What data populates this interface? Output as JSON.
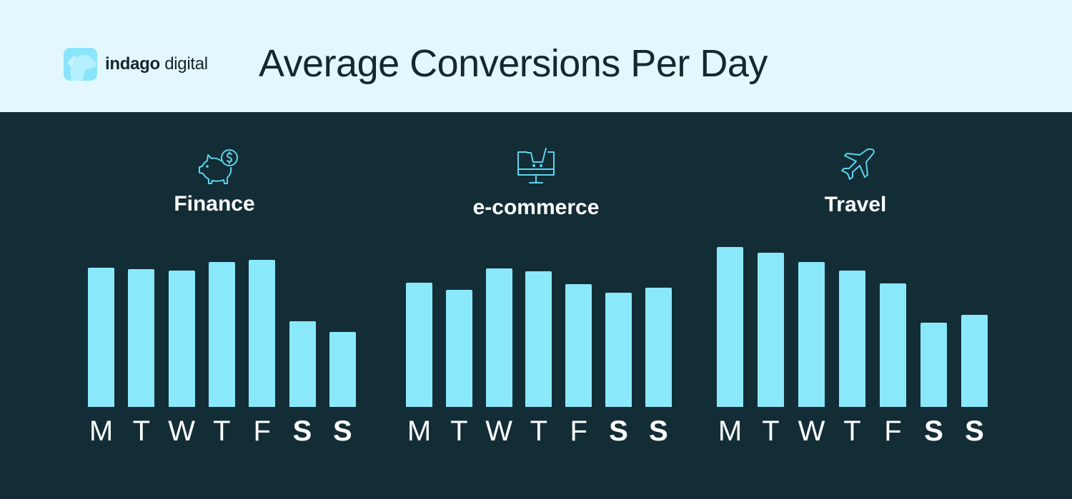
{
  "header": {
    "brand_bold": "indago",
    "brand_light": " digital",
    "title": "Average Conversions Per Day"
  },
  "colors": {
    "header_bg": "#e3f8fe",
    "body_bg": "#132d36",
    "bar": "#8ae8fb",
    "icon_stroke": "#5fd3ee",
    "text_light": "#ffffff",
    "text_dark": "#13282f"
  },
  "panels": [
    {
      "label": "Finance",
      "icon": "piggy-bank-dollar-icon"
    },
    {
      "label": "e-commerce",
      "icon": "monitor-shopping-cart-icon"
    },
    {
      "label": "Travel",
      "icon": "airplane-icon"
    }
  ],
  "chart_data": {
    "type": "bar",
    "title": "Average Conversions Per Day",
    "xlabel": "",
    "ylabel": "",
    "grid": false,
    "note": "No y-axis shown; values are relative bar heights (px) measured from a common baseline",
    "categories": [
      "M",
      "T",
      "W",
      "T",
      "F",
      "S",
      "S"
    ],
    "series": [
      {
        "name": "Finance",
        "values": [
          195,
          193,
          191,
          203,
          206,
          120,
          105
        ]
      },
      {
        "name": "e-commerce",
        "values": [
          174,
          164,
          194,
          190,
          172,
          160,
          167
        ]
      },
      {
        "name": "Travel",
        "values": [
          224,
          216,
          203,
          191,
          173,
          118,
          129
        ]
      }
    ],
    "weekend_indices": [
      5,
      6
    ]
  }
}
